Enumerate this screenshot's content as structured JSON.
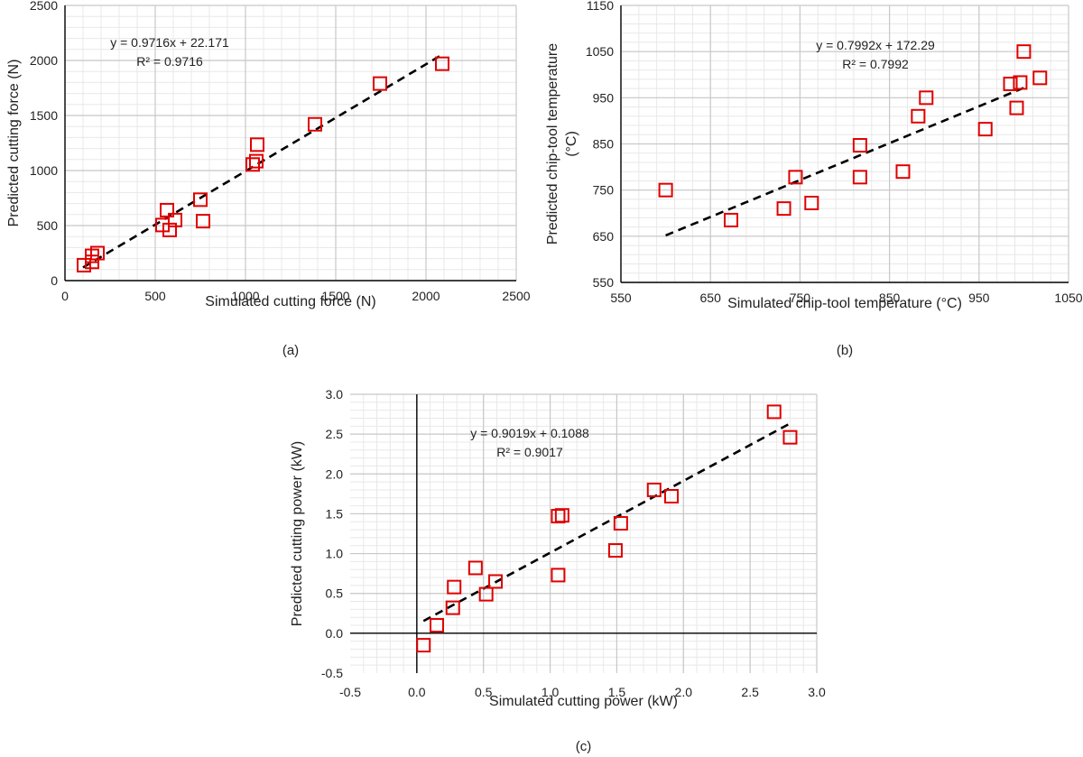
{
  "chart_data": [
    {
      "type": "scatter",
      "panel_label": "(a)",
      "xlabel": "Simulated cutting force (N)",
      "ylabel": "Predicted cutting force (N)",
      "xlim": [
        0,
        2500
      ],
      "ylim": [
        0,
        2500
      ],
      "xticks": [
        0,
        500,
        1000,
        1500,
        2000,
        2500
      ],
      "yticks": [
        0,
        500,
        1000,
        1500,
        2000,
        2500
      ],
      "xtick_labels": [
        "0",
        "500",
        "1000",
        "1500",
        "2000",
        "2500"
      ],
      "ytick_labels": [
        "0",
        "500",
        "1000",
        "1500",
        "2000",
        "2500"
      ],
      "minor_x": 100,
      "minor_y": 100,
      "grid": true,
      "marker": "open-square",
      "marker_color": "#e00000",
      "trendline": {
        "slope": 0.9716,
        "intercept": 22.171,
        "x_range": [
          100,
          2090
        ],
        "style": "dashed",
        "color": "#000000"
      },
      "equation_text": "y = 0.9716x + 22.171",
      "r2_text": "R² = 0.9716",
      "points": [
        [
          105,
          140
        ],
        [
          150,
          170
        ],
        [
          150,
          225
        ],
        [
          180,
          250
        ],
        [
          540,
          505
        ],
        [
          565,
          640
        ],
        [
          580,
          460
        ],
        [
          610,
          550
        ],
        [
          750,
          735
        ],
        [
          765,
          540
        ],
        [
          1040,
          1055
        ],
        [
          1060,
          1085
        ],
        [
          1065,
          1235
        ],
        [
          1385,
          1420
        ],
        [
          1745,
          1790
        ],
        [
          2090,
          1970
        ]
      ]
    },
    {
      "type": "scatter",
      "panel_label": "(b)",
      "xlabel": "Simulated chip-tool temperature (°C)",
      "ylabel": [
        "Predicted chip-tool  temperature",
        "(°C)"
      ],
      "xlim": [
        550,
        1050
      ],
      "ylim": [
        550,
        1150
      ],
      "xticks": [
        550,
        650,
        750,
        850,
        950,
        1050
      ],
      "yticks": [
        550,
        650,
        750,
        850,
        950,
        1050,
        1150
      ],
      "xtick_labels": [
        "550",
        "650",
        "750",
        "850",
        "950",
        "1050"
      ],
      "ytick_labels": [
        "550",
        "650",
        "750",
        "850",
        "950",
        "1050",
        "1150"
      ],
      "minor_x": 20,
      "minor_y": 20,
      "grid": true,
      "marker": "open-square",
      "marker_color": "#e00000",
      "trendline": {
        "slope": 0.7992,
        "intercept": 172.29,
        "x_range": [
          600,
          1000
        ],
        "style": "dashed",
        "color": "#000000"
      },
      "equation_text": "y = 0.7992x + 172.29",
      "r2_text": "R² = 0.7992",
      "points": [
        [
          600,
          750
        ],
        [
          673,
          685
        ],
        [
          732,
          710
        ],
        [
          745,
          778
        ],
        [
          763,
          722
        ],
        [
          817,
          847
        ],
        [
          817,
          778
        ],
        [
          865,
          790
        ],
        [
          882,
          910
        ],
        [
          891,
          950
        ],
        [
          957,
          882
        ],
        [
          985,
          980
        ],
        [
          992,
          928
        ],
        [
          996,
          983
        ],
        [
          1000,
          1050
        ],
        [
          1018,
          993
        ]
      ]
    },
    {
      "type": "scatter",
      "panel_label": "(c)",
      "xlabel": "Simulated cutting power (kW)",
      "ylabel": "Predicted cutting power (kW)",
      "xlim": [
        -0.5,
        3.0
      ],
      "ylim": [
        -0.5,
        3.0
      ],
      "xticks": [
        -0.5,
        0.0,
        0.5,
        1.0,
        1.5,
        2.0,
        2.5,
        3.0
      ],
      "yticks": [
        -0.5,
        0.0,
        0.5,
        1.0,
        1.5,
        2.0,
        2.5,
        3.0
      ],
      "xtick_labels": [
        "-0.5",
        "0.0",
        "0.5",
        "1.0",
        "1.5",
        "2.0",
        "2.5",
        "3.0"
      ],
      "ytick_labels": [
        "-0.5",
        "0.0",
        "0.5",
        "1.0",
        "1.5",
        "2.0",
        "2.5",
        "3.0"
      ],
      "minor_x": 0.1,
      "minor_y": 0.1,
      "grid": true,
      "marker": "open-square",
      "marker_color": "#e00000",
      "trendline": {
        "slope": 0.9019,
        "intercept": 0.1088,
        "x_range": [
          0.05,
          2.8
        ],
        "style": "dashed",
        "color": "#000000"
      },
      "equation_text": "y = 0.9019x + 0.1088",
      "r2_text": "R² = 0.9017",
      "points": [
        [
          0.05,
          -0.15
        ],
        [
          0.15,
          0.1
        ],
        [
          0.27,
          0.32
        ],
        [
          0.28,
          0.58
        ],
        [
          0.44,
          0.82
        ],
        [
          0.52,
          0.49
        ],
        [
          0.59,
          0.65
        ],
        [
          1.06,
          1.47
        ],
        [
          1.06,
          0.73
        ],
        [
          1.09,
          1.48
        ],
        [
          1.49,
          1.04
        ],
        [
          1.53,
          1.38
        ],
        [
          1.78,
          1.8
        ],
        [
          1.91,
          1.72
        ],
        [
          2.68,
          2.78
        ],
        [
          2.8,
          2.46
        ]
      ]
    }
  ]
}
